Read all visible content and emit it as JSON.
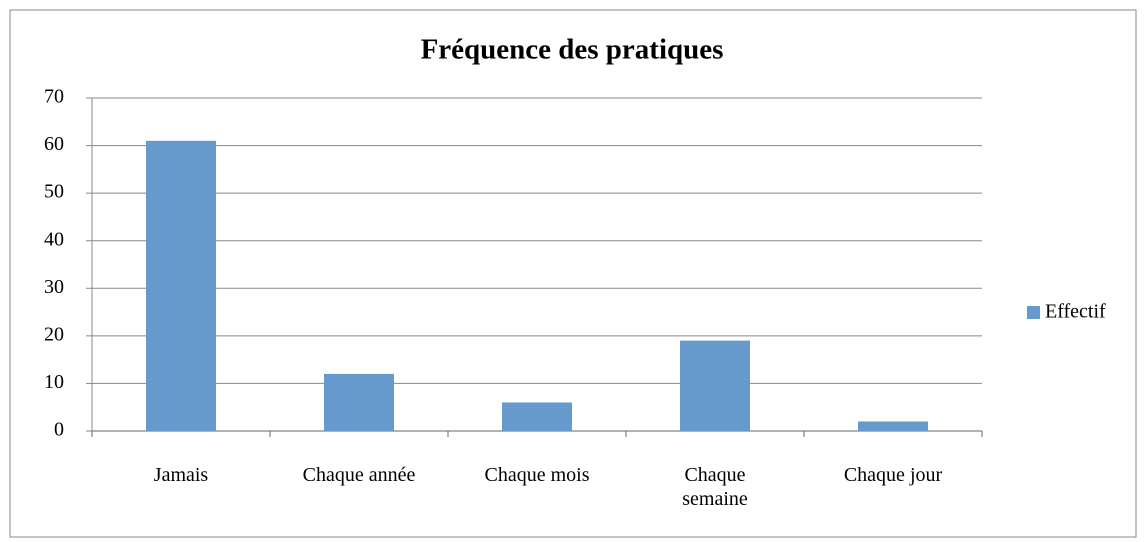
{
  "chart_data": {
    "type": "bar",
    "title": "Fréquence des pratiques",
    "categories": [
      "Jamais",
      "Chaque année",
      "Chaque mois",
      "Chaque semaine",
      "Chaque jour"
    ],
    "series": [
      {
        "name": "Effectif",
        "color": "#6699cc",
        "values": [
          61,
          12,
          6,
          19,
          2
        ]
      }
    ],
    "ylim": [
      0,
      70
    ],
    "yticks": [
      0,
      10,
      20,
      30,
      40,
      50,
      60,
      70
    ],
    "grid": true,
    "legend": "right"
  }
}
